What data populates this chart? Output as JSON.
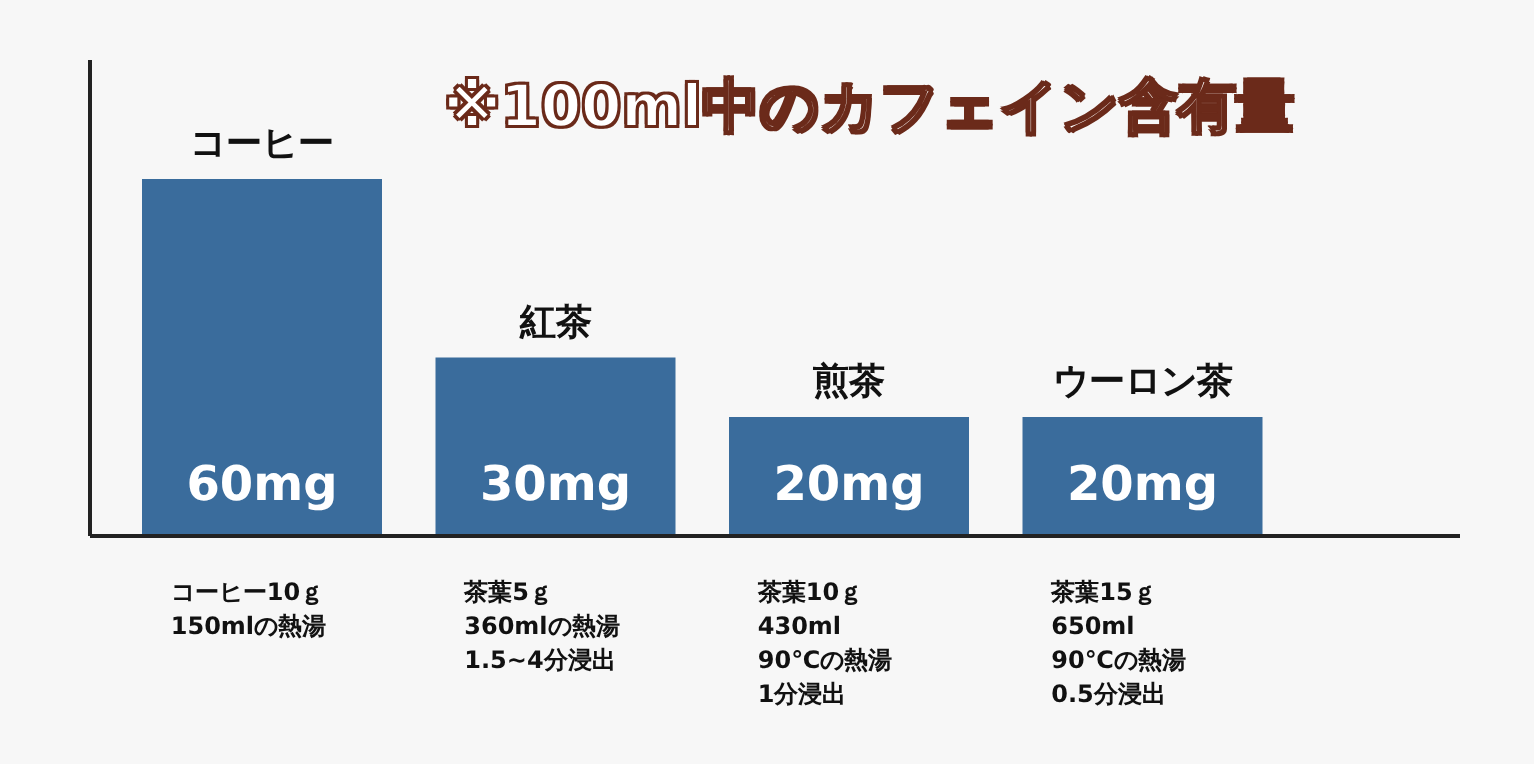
{
  "chart_data": {
    "type": "bar",
    "title": "※100ml中のカフェイン含有量",
    "categories": [
      "コーヒー",
      "紅茶",
      "煎茶",
      "ウーロン茶"
    ],
    "values": [
      60,
      30,
      20,
      20
    ],
    "value_labels": [
      "60mg",
      "30mg",
      "20mg",
      "20mg"
    ],
    "color": "#3a6c9c",
    "annotations": [
      "コーヒー10ｇ\n150mlの熱湯",
      "茶葉5ｇ\n360mlの熱湯\n1.5~4分浸出",
      "茶葉10ｇ\n430ml\n90℃の熱湯\n1分浸出",
      "茶葉15ｇ\n650ml\n90℃の熱湯\n0.5分浸出"
    ]
  }
}
